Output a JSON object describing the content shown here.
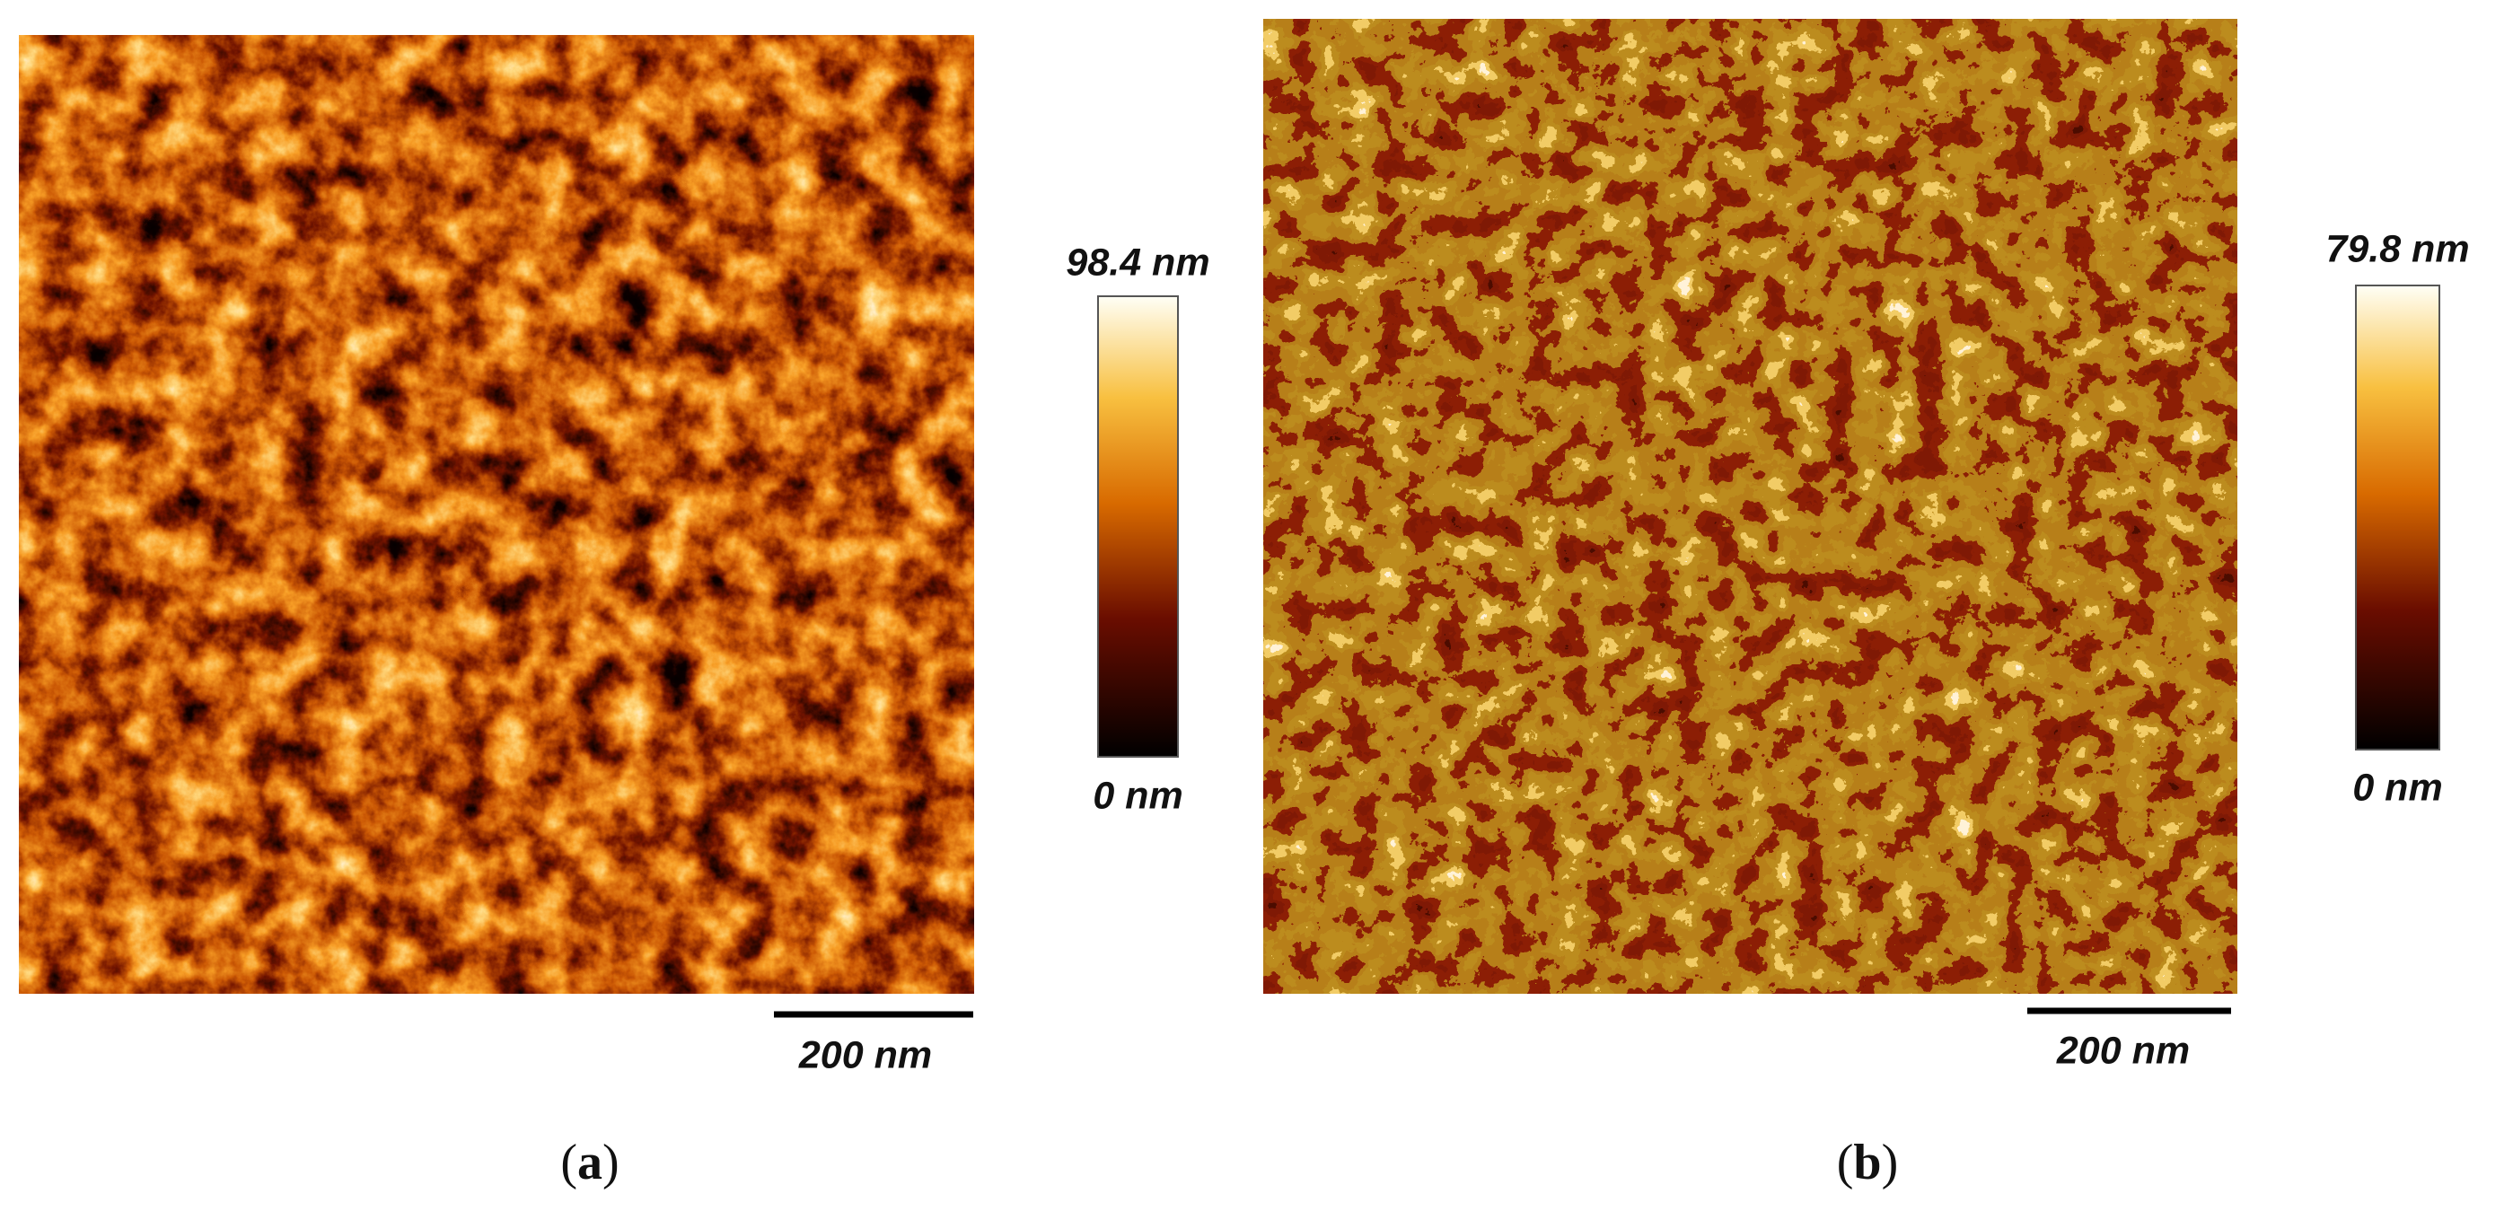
{
  "panels": [
    {
      "max_label": "98.4 nm",
      "min_label": "0 nm",
      "scale_label": "200 nm",
      "caption": [
        "(",
        "a",
        ")"
      ]
    },
    {
      "max_label": "79.8 nm",
      "min_label": "0 nm",
      "scale_label": "200 nm",
      "caption": [
        "(",
        "b",
        ")"
      ]
    }
  ]
}
